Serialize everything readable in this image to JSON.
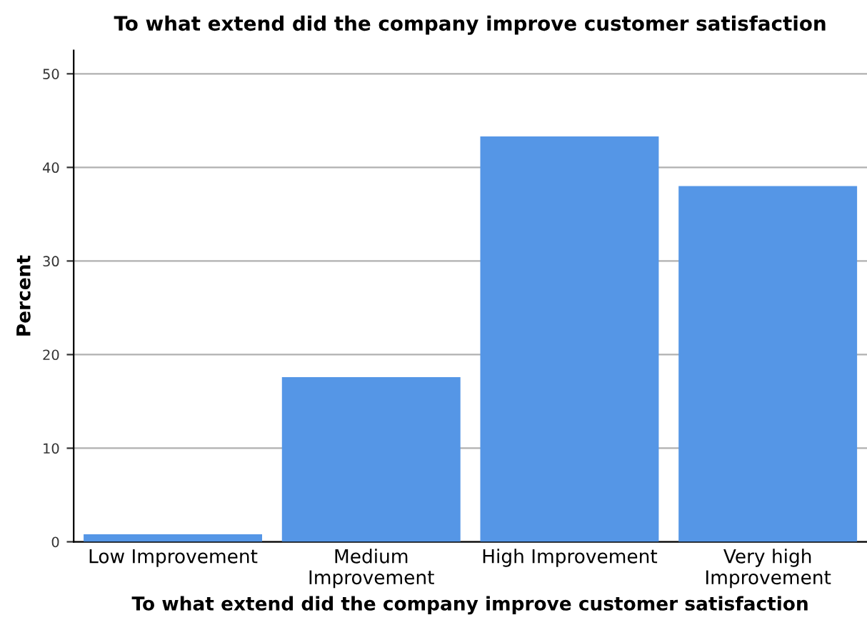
{
  "chart_data": {
    "type": "bar",
    "title": "To what extend did the company improve customer satisfaction",
    "xlabel": "To what extend did the company improve customer satisfaction",
    "ylabel": "Percent",
    "categories": [
      "Low Improvement",
      "Medium\nImprovement",
      "High Improvement",
      "Very high\nImprovement"
    ],
    "values": [
      0.8,
      17.6,
      43.3,
      38.0
    ],
    "color": "#5596e6",
    "ylim": [
      0,
      52.5
    ],
    "yticks": [
      0,
      10,
      20,
      30,
      40,
      50
    ],
    "grid": "y"
  }
}
